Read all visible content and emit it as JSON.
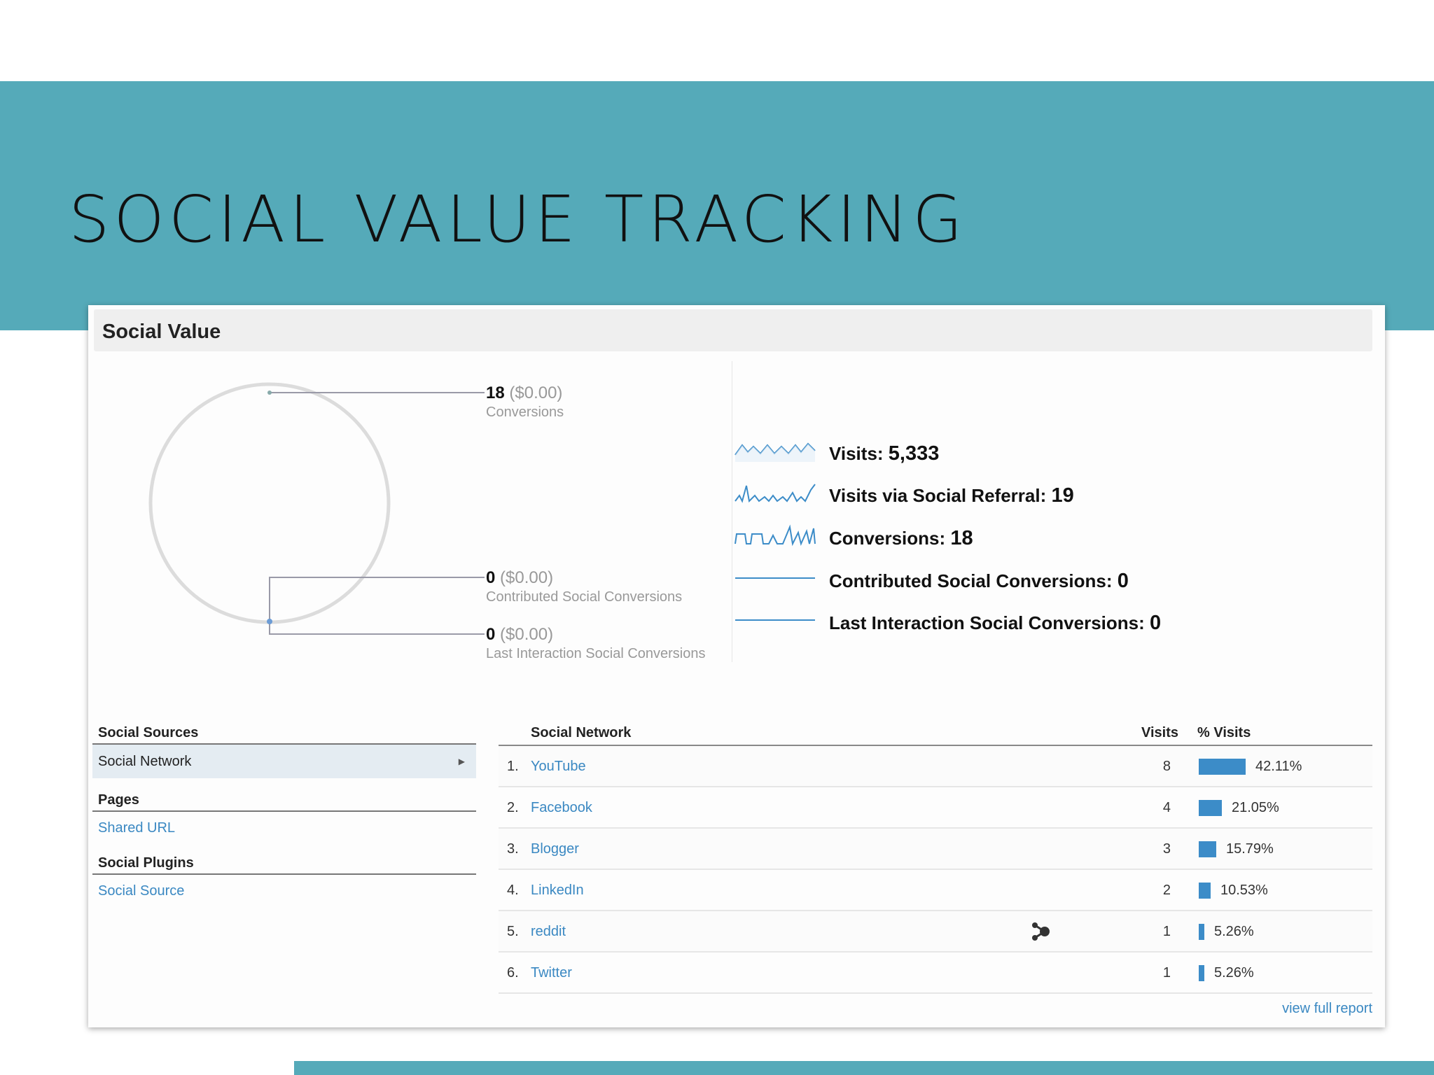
{
  "slide": {
    "title": "SOCIAL VALUE TRACKING"
  },
  "panel": {
    "title": "Social Value"
  },
  "conversions": [
    {
      "value": "18",
      "amount": "($0.00)",
      "label": "Conversions"
    },
    {
      "value": "0",
      "amount": "($0.00)",
      "label": "Contributed Social Conversions"
    },
    {
      "value": "0",
      "amount": "($0.00)",
      "label": "Last Interaction Social Conversions"
    }
  ],
  "metrics": [
    {
      "label": "Visits:",
      "value": "5,333"
    },
    {
      "label": "Visits via Social Referral:",
      "value": "19"
    },
    {
      "label": "Conversions:",
      "value": "18"
    },
    {
      "label": "Contributed Social Conversions:",
      "value": "0"
    },
    {
      "label": "Last Interaction Social Conversions:",
      "value": "0"
    }
  ],
  "nav": {
    "sources_head": "Social Sources",
    "active_item": "Social Network",
    "pages_head": "Pages",
    "pages_link": "Shared URL",
    "plugins_head": "Social Plugins",
    "plugins_link": "Social Source"
  },
  "table": {
    "headers": {
      "network": "Social Network",
      "visits": "Visits",
      "pct": "% Visits"
    },
    "rows": [
      {
        "rank": "1.",
        "name": "YouTube",
        "visits": "8",
        "pct": "42.11%",
        "share": 0.4211
      },
      {
        "rank": "2.",
        "name": "Facebook",
        "visits": "4",
        "pct": "21.05%",
        "share": 0.2105
      },
      {
        "rank": "3.",
        "name": "Blogger",
        "visits": "3",
        "pct": "15.79%",
        "share": 0.1579
      },
      {
        "rank": "4.",
        "name": "LinkedIn",
        "visits": "2",
        "pct": "10.53%",
        "share": 0.1053
      },
      {
        "rank": "5.",
        "name": "reddit",
        "visits": "1",
        "pct": "5.26%",
        "share": 0.0526
      },
      {
        "rank": "6.",
        "name": "Twitter",
        "visits": "1",
        "pct": "5.26%",
        "share": 0.0526
      }
    ],
    "full_report": "view full report"
  },
  "colors": {
    "banner": "#55aab9",
    "link": "#3a88c2",
    "bar": "#3c8cc8"
  }
}
